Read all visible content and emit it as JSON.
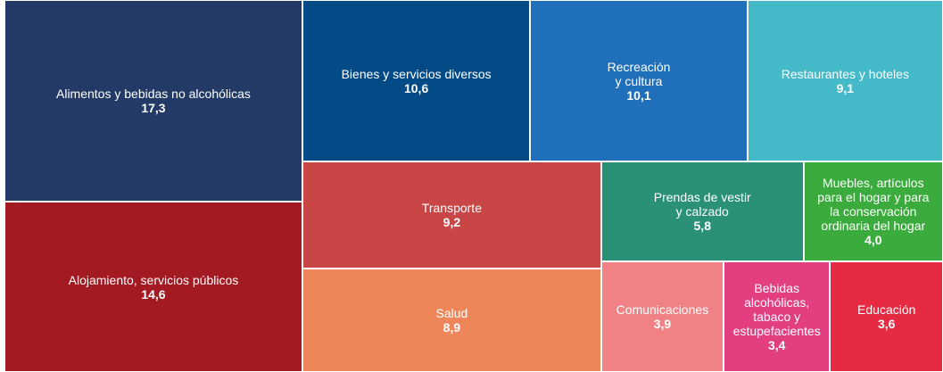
{
  "chart_data": {
    "type": "treemap",
    "categories": [
      "Alimentos y bebidas no alcohólicas",
      "Alojamiento, servicios públicos",
      "Bienes y servicios diversos",
      "Recreación\ny cultura",
      "Restaurantes y hoteles",
      "Transporte",
      "Salud",
      "Prendas de vestir\ny calzado",
      "Muebles, artículos\npara el hogar y para\nla conservación\nordinaria del hogar",
      "Comunicaciones",
      "Bebidas\nalcohólicas,\ntabaco y\nestupefacientes",
      "Educación"
    ],
    "values": [
      17.3,
      14.6,
      10.6,
      10.1,
      9.1,
      9.2,
      8.9,
      5.8,
      4.0,
      3.9,
      3.4,
      3.6
    ],
    "value_labels": [
      "17,3",
      "14,6",
      "10,6",
      "10,1",
      "9,1",
      "9,2",
      "8,9",
      "5,8",
      "4,0",
      "3,9",
      "3,4",
      "3,6"
    ],
    "colors": [
      "#233a66",
      "#a31a22",
      "#034b87",
      "#1f6fba",
      "#44b9c7",
      "#c84646",
      "#ef8659",
      "#2a9178",
      "#3aab3c",
      "#f08286",
      "#e33e80",
      "#e52a42"
    ]
  }
}
